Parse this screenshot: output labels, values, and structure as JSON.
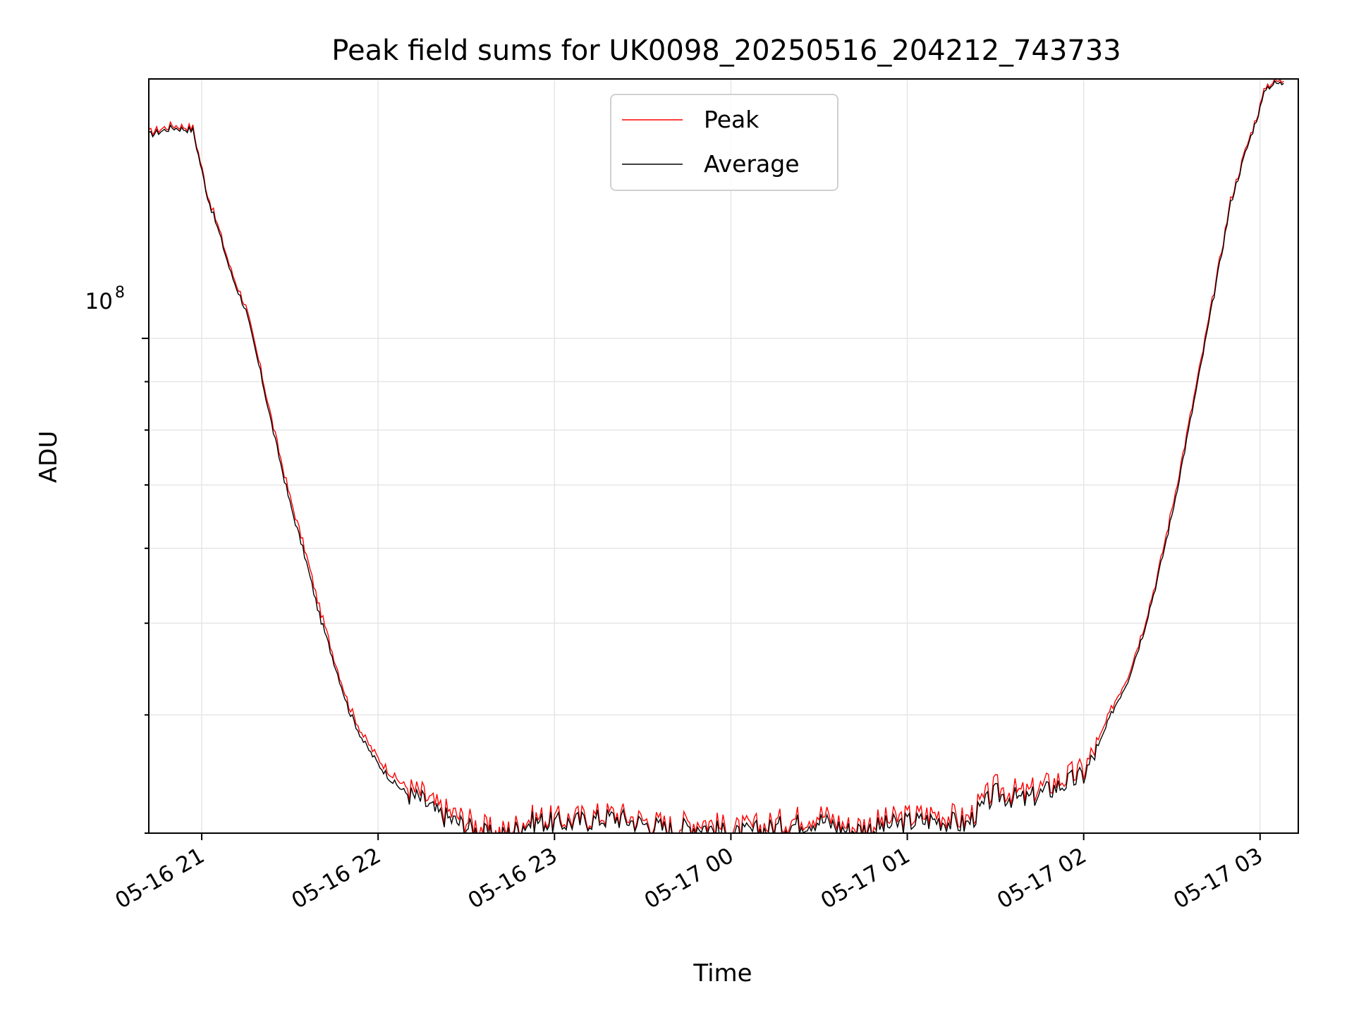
{
  "chart_data": {
    "type": "line",
    "title": "Peak field sums for UK0098_20250516_204212_743733",
    "xlabel": "Time",
    "ylabel": "ADU",
    "y_scale": "log",
    "grid": true,
    "legend_position": "top-center",
    "x_tick_labels": [
      "05-16 21",
      "05-16 22",
      "05-16 23",
      "05-17 00",
      "05-17 01",
      "05-17 02",
      "05-17 03"
    ],
    "y_tick_label": {
      "base": "10",
      "exponent": "8"
    },
    "series": [
      {
        "name": "Peak",
        "color": "#ff0000",
        "points": [
          [
            "2025-05-16 20:42",
            165000000.0
          ],
          [
            "2025-05-16 20:50",
            168000000.0
          ],
          [
            "2025-05-16 20:57",
            167000000.0
          ],
          [
            "2025-05-16 21:02",
            142000000.0
          ],
          [
            "2025-05-16 21:06",
            130000000.0
          ],
          [
            "2025-05-16 21:10",
            118000000.0
          ],
          [
            "2025-05-16 21:15",
            108000000.0
          ],
          [
            "2025-05-16 21:20",
            93000000.0
          ],
          [
            "2025-05-16 21:25",
            79000000.0
          ],
          [
            "2025-05-16 21:30",
            68000000.0
          ],
          [
            "2025-05-16 21:35",
            60000000.0
          ],
          [
            "2025-05-16 21:40",
            52000000.0
          ],
          [
            "2025-05-16 21:45",
            46000000.0
          ],
          [
            "2025-05-16 21:50",
            41000000.0
          ],
          [
            "2025-05-16 21:55",
            38000000.0
          ],
          [
            "2025-05-16 22:00",
            36000000.0
          ],
          [
            "2025-05-16 22:05",
            34500000.0
          ],
          [
            "2025-05-16 22:10",
            33500000.0
          ],
          [
            "2025-05-16 22:15",
            33000000.0
          ],
          [
            "2025-05-16 22:20",
            32000000.0
          ],
          [
            "2025-05-16 22:25",
            31500000.0
          ],
          [
            "2025-05-16 22:30",
            31000000.0
          ],
          [
            "2025-05-16 22:35",
            30500000.0
          ],
          [
            "2025-05-16 22:40",
            30000000.0
          ],
          [
            "2025-05-16 22:45",
            30300000.0
          ],
          [
            "2025-05-16 22:50",
            31000000.0
          ],
          [
            "2025-05-16 22:55",
            31200000.0
          ],
          [
            "2025-05-16 23:00",
            31000000.0
          ],
          [
            "2025-05-16 23:10",
            31200000.0
          ],
          [
            "2025-05-16 23:20",
            31500000.0
          ],
          [
            "2025-05-16 23:30",
            31000000.0
          ],
          [
            "2025-05-16 23:40",
            30500000.0
          ],
          [
            "2025-05-16 23:50",
            31000000.0
          ],
          [
            "2025-05-17 00:00",
            30200000.0
          ],
          [
            "2025-05-17 00:10",
            30500000.0
          ],
          [
            "2025-05-17 00:20",
            31000000.0
          ],
          [
            "2025-05-17 00:30",
            31500000.0
          ],
          [
            "2025-05-17 00:40",
            30500000.0
          ],
          [
            "2025-05-17 00:50",
            30800000.0
          ],
          [
            "2025-05-17 01:00",
            31200000.0
          ],
          [
            "2025-05-17 01:10",
            31500000.0
          ],
          [
            "2025-05-17 01:20",
            31000000.0
          ],
          [
            "2025-05-17 01:30",
            33500000.0
          ],
          [
            "2025-05-17 01:40",
            33000000.0
          ],
          [
            "2025-05-17 01:50",
            34000000.0
          ],
          [
            "2025-05-17 02:00",
            35000000.0
          ],
          [
            "2025-05-17 02:05",
            37500000.0
          ],
          [
            "2025-05-17 02:10",
            41000000.0
          ],
          [
            "2025-05-17 02:15",
            44000000.0
          ],
          [
            "2025-05-17 02:20",
            49000000.0
          ],
          [
            "2025-05-17 02:25",
            56000000.0
          ],
          [
            "2025-05-17 02:30",
            66000000.0
          ],
          [
            "2025-05-17 02:35",
            79000000.0
          ],
          [
            "2025-05-17 02:40",
            95000000.0
          ],
          [
            "2025-05-17 02:45",
            115000000.0
          ],
          [
            "2025-05-17 02:50",
            140000000.0
          ],
          [
            "2025-05-17 02:55",
            158000000.0
          ],
          [
            "2025-05-17 03:00",
            176000000.0
          ],
          [
            "2025-05-17 03:02",
            185000000.0
          ],
          [
            "2025-05-17 03:05",
            187000000.0
          ],
          [
            "2025-05-17 03:08",
            187000000.0
          ]
        ]
      },
      {
        "name": "Average",
        "color": "#000000",
        "points": [
          [
            "2025-05-16 20:42",
            164000000.0
          ],
          [
            "2025-05-16 20:50",
            167000000.0
          ],
          [
            "2025-05-16 20:57",
            166000000.0
          ],
          [
            "2025-05-16 21:02",
            141000000.0
          ],
          [
            "2025-05-16 21:06",
            129000000.0
          ],
          [
            "2025-05-16 21:10",
            117000000.0
          ],
          [
            "2025-05-16 21:15",
            107000000.0
          ],
          [
            "2025-05-16 21:20",
            92000000.0
          ],
          [
            "2025-05-16 21:25",
            78000000.0
          ],
          [
            "2025-05-16 21:30",
            67000000.0
          ],
          [
            "2025-05-16 21:35",
            59000000.0
          ],
          [
            "2025-05-16 21:40",
            51000000.0
          ],
          [
            "2025-05-16 21:45",
            45500000.0
          ],
          [
            "2025-05-16 21:50",
            40500000.0
          ],
          [
            "2025-05-16 21:55",
            37500000.0
          ],
          [
            "2025-05-16 22:00",
            35500000.0
          ],
          [
            "2025-05-16 22:05",
            34000000.0
          ],
          [
            "2025-05-16 22:10",
            33000000.0
          ],
          [
            "2025-05-16 22:15",
            32500000.0
          ],
          [
            "2025-05-16 22:20",
            31500000.0
          ],
          [
            "2025-05-16 22:25",
            31000000.0
          ],
          [
            "2025-05-16 22:30",
            30500000.0
          ],
          [
            "2025-05-16 22:35",
            30000000.0
          ],
          [
            "2025-05-16 22:40",
            29700000.0
          ],
          [
            "2025-05-16 22:45",
            30000000.0
          ],
          [
            "2025-05-16 22:50",
            30700000.0
          ],
          [
            "2025-05-16 22:55",
            30900000.0
          ],
          [
            "2025-05-16 23:00",
            30700000.0
          ],
          [
            "2025-05-16 23:10",
            30900000.0
          ],
          [
            "2025-05-16 23:20",
            31200000.0
          ],
          [
            "2025-05-16 23:30",
            30700000.0
          ],
          [
            "2025-05-16 23:40",
            30200000.0
          ],
          [
            "2025-05-16 23:50",
            30600000.0
          ],
          [
            "2025-05-17 00:00",
            29800000.0
          ],
          [
            "2025-05-17 00:10",
            30200000.0
          ],
          [
            "2025-05-17 00:20",
            30600000.0
          ],
          [
            "2025-05-17 00:30",
            31000000.0
          ],
          [
            "2025-05-17 00:40",
            30200000.0
          ],
          [
            "2025-05-17 00:50",
            30400000.0
          ],
          [
            "2025-05-17 01:00",
            30800000.0
          ],
          [
            "2025-05-17 01:10",
            31000000.0
          ],
          [
            "2025-05-17 01:20",
            30600000.0
          ],
          [
            "2025-05-17 01:30",
            33000000.0
          ],
          [
            "2025-05-17 01:40",
            32500000.0
          ],
          [
            "2025-05-17 01:50",
            33500000.0
          ],
          [
            "2025-05-17 02:00",
            34500000.0
          ],
          [
            "2025-05-17 02:05",
            37000000.0
          ],
          [
            "2025-05-17 02:10",
            40500000.0
          ],
          [
            "2025-05-17 02:15",
            43500000.0
          ],
          [
            "2025-05-17 02:20",
            48500000.0
          ],
          [
            "2025-05-17 02:25",
            55500000.0
          ],
          [
            "2025-05-17 02:30",
            65000000.0
          ],
          [
            "2025-05-17 02:35",
            78000000.0
          ],
          [
            "2025-05-17 02:40",
            94000000.0
          ],
          [
            "2025-05-17 02:45",
            114000000.0
          ],
          [
            "2025-05-17 02:50",
            139000000.0
          ],
          [
            "2025-05-17 02:55",
            157000000.0
          ],
          [
            "2025-05-17 03:00",
            175000000.0
          ],
          [
            "2025-05-17 03:02",
            184000000.0
          ],
          [
            "2025-05-17 03:05",
            186000000.0
          ],
          [
            "2025-05-17 03:08",
            186000000.0
          ]
        ]
      }
    ],
    "xlim": [
      "2025-05-16 20:42",
      "2025-05-17 03:13"
    ],
    "ylim": [
      30000000.0,
      188000000.0
    ]
  }
}
